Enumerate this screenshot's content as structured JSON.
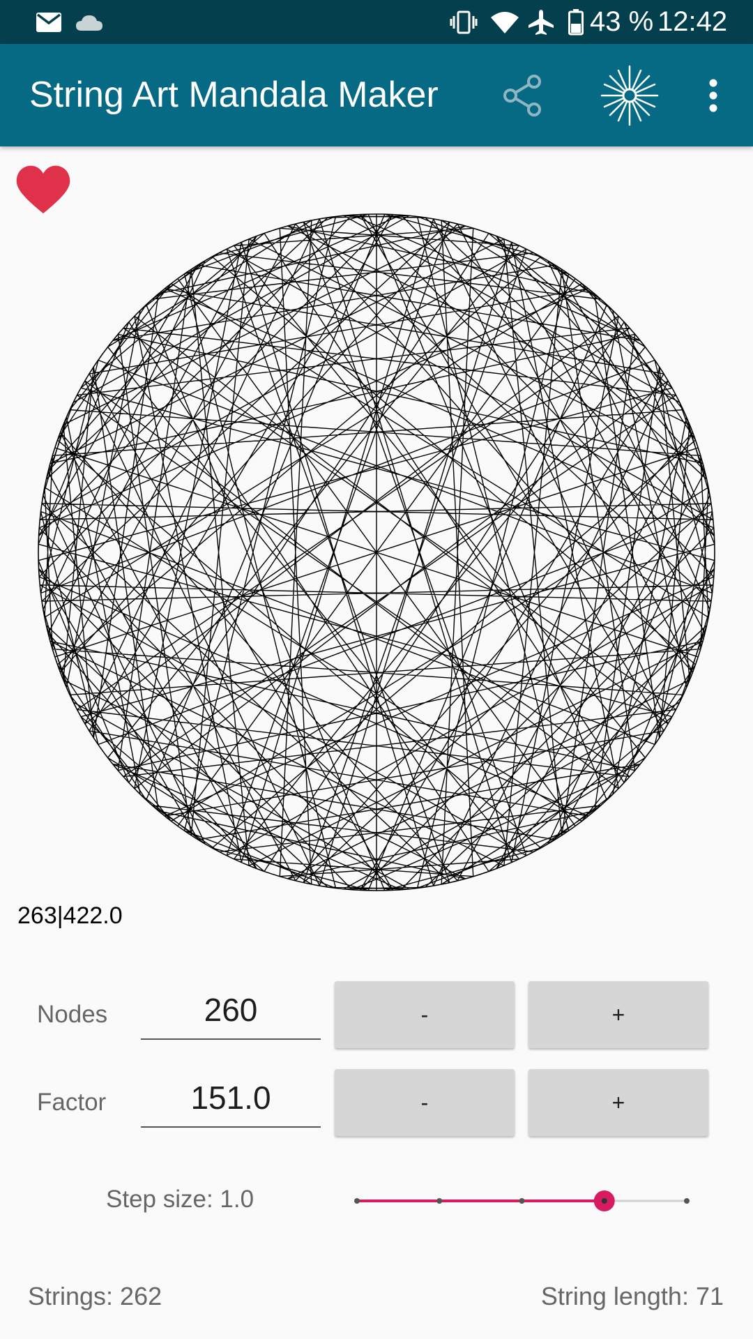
{
  "status_bar": {
    "battery": "43 %",
    "time": "12:42",
    "icons": [
      "mail-icon",
      "cloud-icon",
      "vibrate-icon",
      "wifi-icon",
      "airplane-icon",
      "battery-icon"
    ]
  },
  "app_bar": {
    "title": "String Art Mandala Maker",
    "actions": [
      "share-icon",
      "sparkle-icon",
      "more-vert-icon"
    ],
    "background": "#066a85"
  },
  "canvas": {
    "nodes": 260,
    "factor": 151.0,
    "stroke_color": "#000000"
  },
  "coords_readout": "263|422.0",
  "controls": {
    "nodes": {
      "label": "Nodes",
      "value": "260",
      "minus": "-",
      "plus": "+"
    },
    "factor": {
      "label": "Factor",
      "value": "151.0",
      "minus": "-",
      "plus": "+"
    }
  },
  "step": {
    "label": "Step size: 1.0",
    "slider_positions": 5,
    "slider_selected_index": 3,
    "accent_color": "#d81b60"
  },
  "footer": {
    "strings": "Strings: 262",
    "string_length": "String length: 71"
  },
  "favorite_color": "#e0314b"
}
